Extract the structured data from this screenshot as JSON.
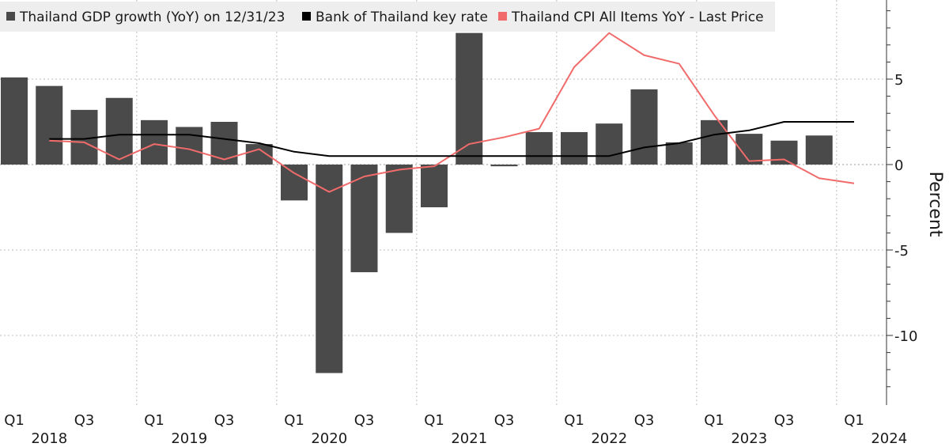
{
  "chart_data": {
    "type": "bar",
    "ylabel": "Percent",
    "ylim": [
      -14,
      9.3
    ],
    "yticks": [
      5,
      0,
      -5,
      -10
    ],
    "grid": true,
    "legend_position": "top-left",
    "colors": {
      "bar": "#4a4a4a",
      "rate": "#000000",
      "cpi": "#f16b6b",
      "grid": "#bdbdbd",
      "legend_bg": "#eeeeee"
    },
    "categories": [
      "2018-Q1",
      "2018-Q2",
      "2018-Q3",
      "2018-Q4",
      "2019-Q1",
      "2019-Q2",
      "2019-Q3",
      "2019-Q4",
      "2020-Q1",
      "2020-Q2",
      "2020-Q3",
      "2020-Q4",
      "2021-Q1",
      "2021-Q2",
      "2021-Q3",
      "2021-Q4",
      "2022-Q1",
      "2022-Q2",
      "2022-Q3",
      "2022-Q4",
      "2023-Q1",
      "2023-Q2",
      "2023-Q3",
      "2023-Q4",
      "2024-Q1"
    ],
    "x_labels": [
      {
        "quarter": "Q1",
        "year": "2018"
      },
      {
        "quarter": "Q3",
        "year": ""
      },
      {
        "quarter": "Q1",
        "year": "2019"
      },
      {
        "quarter": "Q3",
        "year": ""
      },
      {
        "quarter": "Q1",
        "year": "2020"
      },
      {
        "quarter": "Q3",
        "year": ""
      },
      {
        "quarter": "Q1",
        "year": "2021"
      },
      {
        "quarter": "Q3",
        "year": ""
      },
      {
        "quarter": "Q1",
        "year": "2022"
      },
      {
        "quarter": "Q3",
        "year": ""
      },
      {
        "quarter": "Q1",
        "year": "2023"
      },
      {
        "quarter": "Q3",
        "year": ""
      },
      {
        "quarter": "Q1",
        "year": "2024"
      }
    ],
    "series": [
      {
        "name": "Thailand GDP growth (YoY) on 12/31/23",
        "kind": "bar",
        "values": [
          5.1,
          4.6,
          3.2,
          3.9,
          2.6,
          2.2,
          2.5,
          1.2,
          -2.1,
          -12.2,
          -6.3,
          -4.0,
          -2.5,
          7.7,
          -0.1,
          1.9,
          1.9,
          2.4,
          4.4,
          1.3,
          2.6,
          1.8,
          1.4,
          1.7,
          null
        ]
      },
      {
        "name": "Bank of Thailand key rate",
        "kind": "line",
        "values": [
          null,
          1.5,
          1.5,
          1.75,
          1.75,
          1.75,
          1.5,
          1.25,
          0.75,
          0.5,
          0.5,
          0.5,
          0.5,
          0.5,
          0.5,
          0.5,
          0.5,
          0.5,
          1.0,
          1.25,
          1.75,
          2.0,
          2.5,
          2.5,
          2.5
        ]
      },
      {
        "name": "Thailand CPI All Items YoY - Last Price",
        "kind": "line",
        "values": [
          null,
          1.4,
          1.3,
          0.3,
          1.2,
          0.9,
          0.3,
          0.9,
          -0.5,
          -1.6,
          -0.7,
          -0.3,
          -0.1,
          1.2,
          1.6,
          2.1,
          5.7,
          7.7,
          6.4,
          5.9,
          2.9,
          0.2,
          0.3,
          -0.8,
          -1.1
        ]
      }
    ]
  }
}
